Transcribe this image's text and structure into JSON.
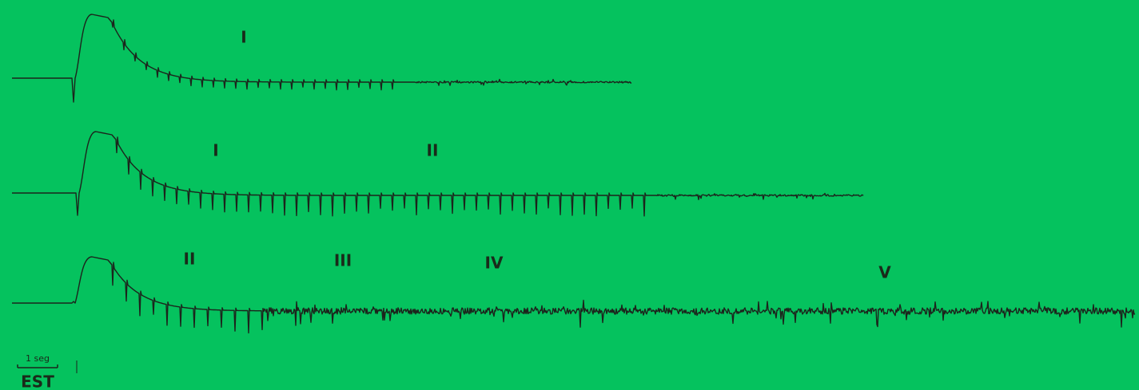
{
  "traces": [
    {
      "labels": [
        "I"
      ]
    },
    {
      "labels": [
        "I",
        "II"
      ]
    },
    {
      "labels": [
        "II",
        "III",
        "IV",
        "V"
      ]
    }
  ],
  "scale_bar": {
    "label": "1 seg"
  },
  "stimulus": "EST"
}
